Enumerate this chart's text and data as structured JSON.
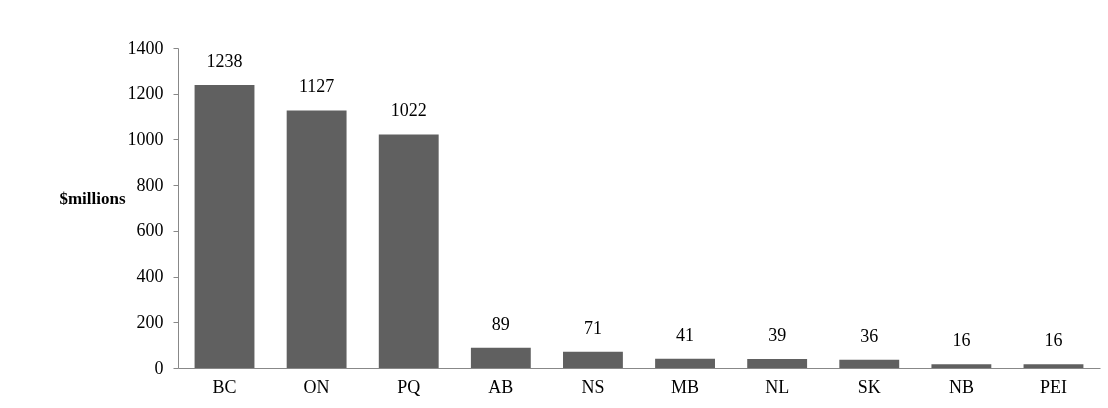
{
  "chart_data": {
    "type": "bar",
    "ylabel": "$millions",
    "categories": [
      "BC",
      "ON",
      "PQ",
      "AB",
      "NS",
      "MB",
      "NL",
      "SK",
      "NB",
      "PEI"
    ],
    "values": [
      1238,
      1127,
      1022,
      89,
      71,
      41,
      39,
      36,
      16,
      16
    ],
    "color": "#606060",
    "ylim": [
      0,
      1400
    ],
    "yticks": [
      0,
      200,
      400,
      600,
      800,
      1000,
      1200,
      1400
    ],
    "data_labels": true
  }
}
